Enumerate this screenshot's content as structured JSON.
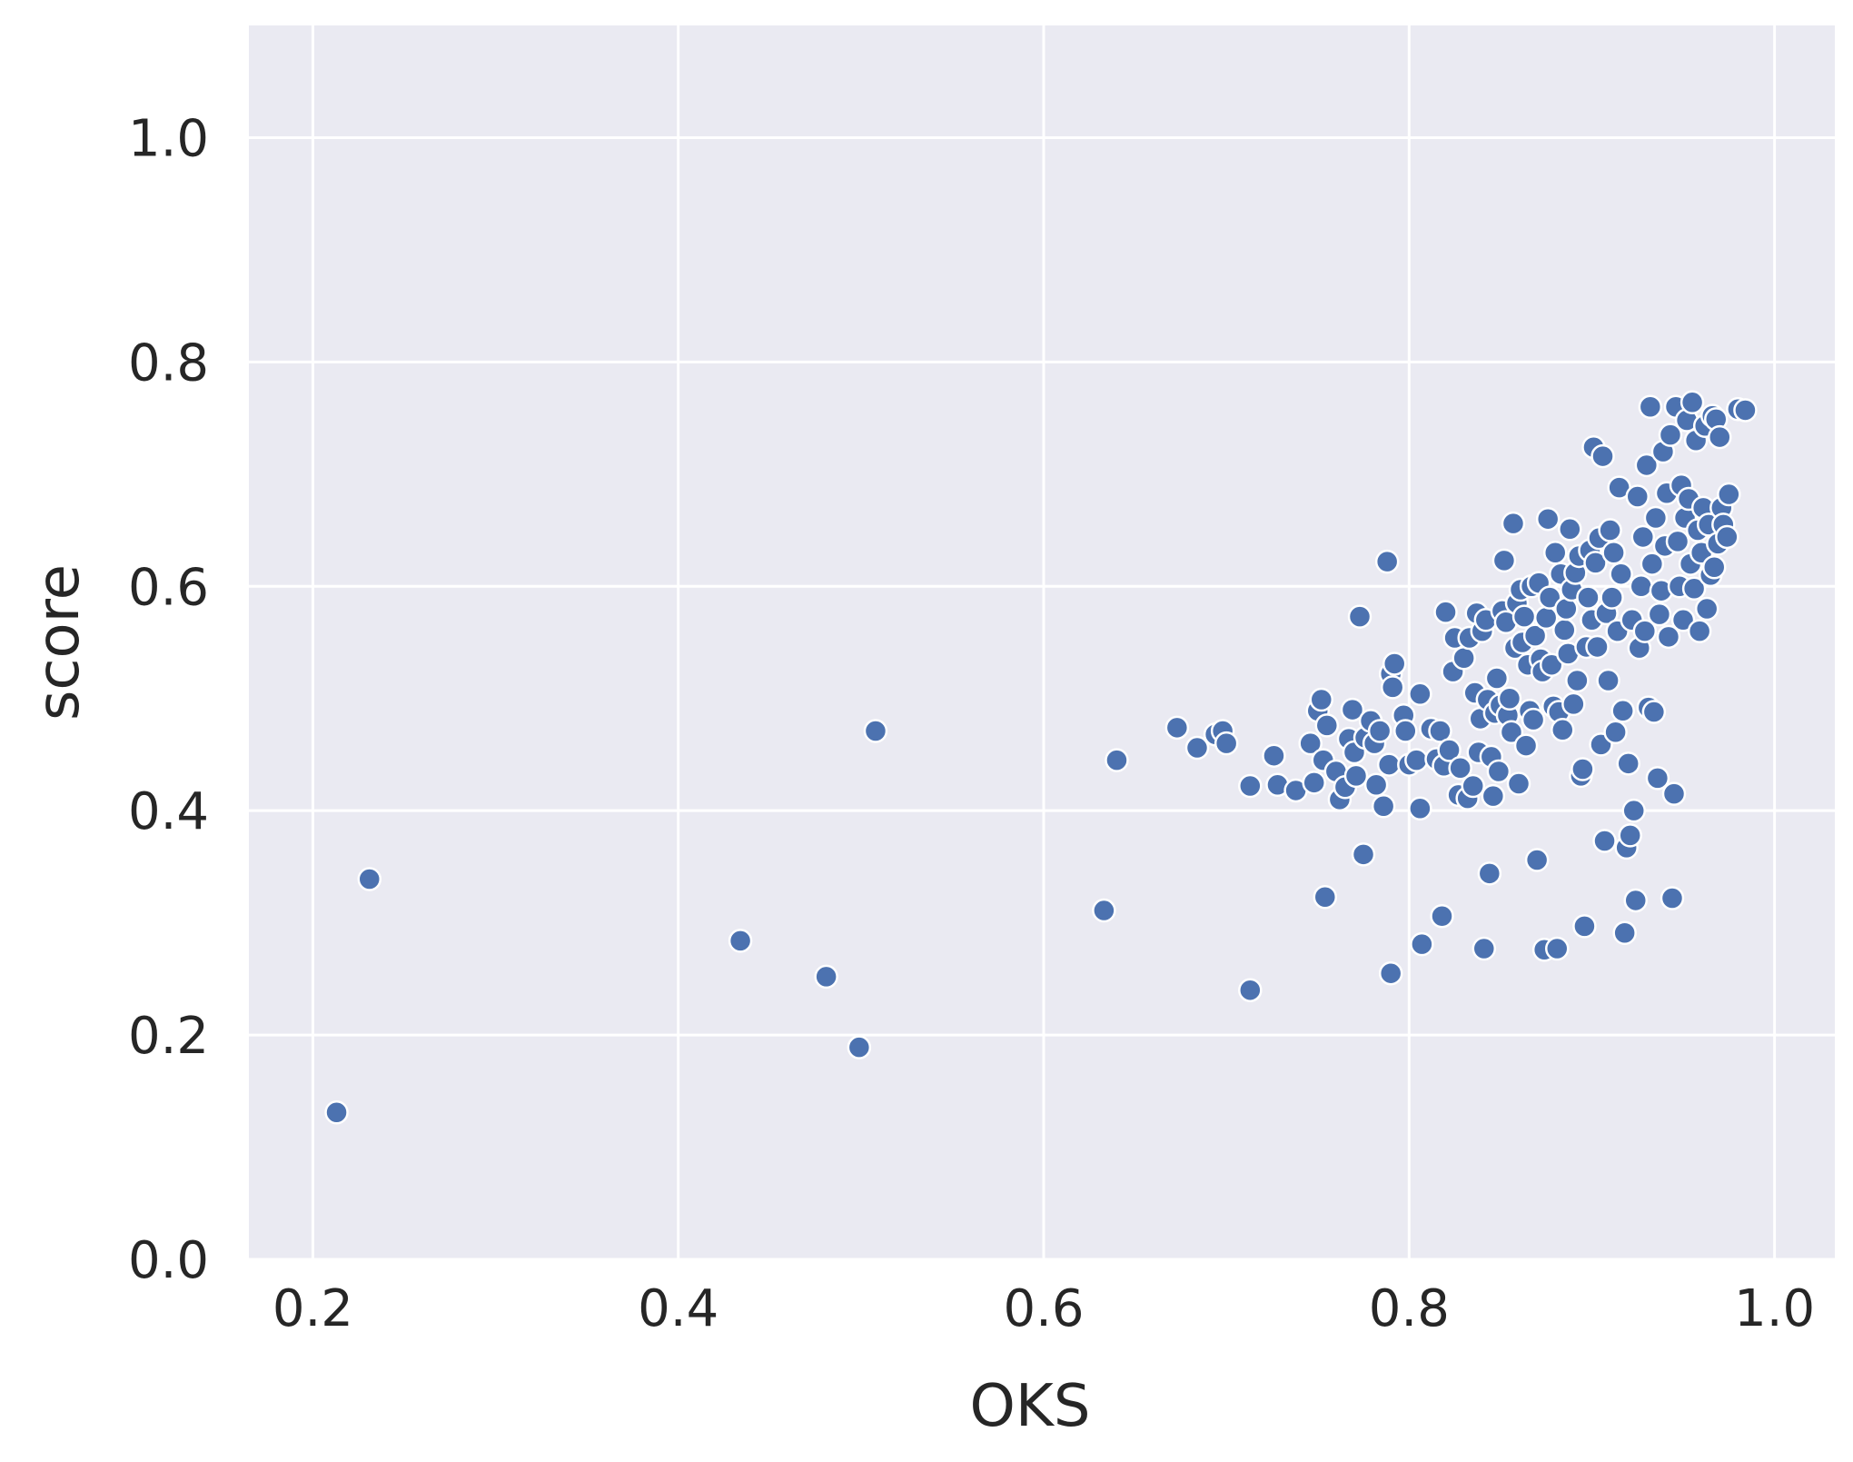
{
  "chart_data": {
    "type": "scatter",
    "title": "",
    "xlabel": "OKS",
    "ylabel": "score",
    "xlim": [
      0.165,
      1.033
    ],
    "ylim": [
      0.0,
      1.1
    ],
    "xticks": [
      0.2,
      0.4,
      0.6,
      0.8,
      1.0
    ],
    "yticks": [
      0.0,
      0.2,
      0.4,
      0.6,
      0.8,
      1.0
    ],
    "xtick_labels": [
      "0.2",
      "0.4",
      "0.6",
      "0.8",
      "1.0"
    ],
    "ytick_labels": [
      "0.0",
      "0.2",
      "0.4",
      "0.6",
      "0.8",
      "1.0"
    ],
    "grid": true,
    "background": "#eaeaf2",
    "marker_color": "#4c72b0",
    "points": [
      [
        0.213,
        0.131
      ],
      [
        0.231,
        0.339
      ],
      [
        0.434,
        0.284
      ],
      [
        0.481,
        0.252
      ],
      [
        0.499,
        0.189
      ],
      [
        0.508,
        0.471
      ],
      [
        0.633,
        0.311
      ],
      [
        0.64,
        0.445
      ],
      [
        0.673,
        0.474
      ],
      [
        0.684,
        0.456
      ],
      [
        0.694,
        0.468
      ],
      [
        0.698,
        0.471
      ],
      [
        0.7,
        0.46
      ],
      [
        0.713,
        0.422
      ],
      [
        0.713,
        0.24
      ],
      [
        0.726,
        0.449
      ],
      [
        0.728,
        0.423
      ],
      [
        0.738,
        0.418
      ],
      [
        0.746,
        0.46
      ],
      [
        0.748,
        0.425
      ],
      [
        0.75,
        0.489
      ],
      [
        0.752,
        0.499
      ],
      [
        0.753,
        0.445
      ],
      [
        0.754,
        0.323
      ],
      [
        0.755,
        0.476
      ],
      [
        0.76,
        0.435
      ],
      [
        0.762,
        0.41
      ],
      [
        0.765,
        0.421
      ],
      [
        0.767,
        0.464
      ],
      [
        0.769,
        0.49
      ],
      [
        0.77,
        0.452
      ],
      [
        0.771,
        0.431
      ],
      [
        0.773,
        0.573
      ],
      [
        0.775,
        0.361
      ],
      [
        0.776,
        0.465
      ],
      [
        0.779,
        0.48
      ],
      [
        0.781,
        0.46
      ],
      [
        0.782,
        0.423
      ],
      [
        0.784,
        0.471
      ],
      [
        0.786,
        0.404
      ],
      [
        0.788,
        0.622
      ],
      [
        0.789,
        0.441
      ],
      [
        0.79,
        0.255
      ],
      [
        0.79,
        0.522
      ],
      [
        0.791,
        0.51
      ],
      [
        0.792,
        0.531
      ],
      [
        0.797,
        0.485
      ],
      [
        0.798,
        0.471
      ],
      [
        0.8,
        0.441
      ],
      [
        0.804,
        0.445
      ],
      [
        0.806,
        0.402
      ],
      [
        0.806,
        0.504
      ],
      [
        0.807,
        0.281
      ],
      [
        0.812,
        0.473
      ],
      [
        0.815,
        0.446
      ],
      [
        0.817,
        0.471
      ],
      [
        0.818,
        0.306
      ],
      [
        0.819,
        0.44
      ],
      [
        0.82,
        0.577
      ],
      [
        0.822,
        0.454
      ],
      [
        0.824,
        0.524
      ],
      [
        0.825,
        0.554
      ],
      [
        0.827,
        0.414
      ],
      [
        0.828,
        0.438
      ],
      [
        0.83,
        0.536
      ],
      [
        0.832,
        0.411
      ],
      [
        0.833,
        0.554
      ],
      [
        0.835,
        0.422
      ],
      [
        0.836,
        0.505
      ],
      [
        0.837,
        0.576
      ],
      [
        0.838,
        0.452
      ],
      [
        0.839,
        0.482
      ],
      [
        0.84,
        0.56
      ],
      [
        0.841,
        0.277
      ],
      [
        0.842,
        0.57
      ],
      [
        0.843,
        0.499
      ],
      [
        0.844,
        0.344
      ],
      [
        0.845,
        0.448
      ],
      [
        0.846,
        0.413
      ],
      [
        0.847,
        0.487
      ],
      [
        0.848,
        0.518
      ],
      [
        0.849,
        0.435
      ],
      [
        0.85,
        0.494
      ],
      [
        0.851,
        0.578
      ],
      [
        0.852,
        0.623
      ],
      [
        0.853,
        0.568
      ],
      [
        0.854,
        0.485
      ],
      [
        0.855,
        0.5
      ],
      [
        0.856,
        0.47
      ],
      [
        0.857,
        0.656
      ],
      [
        0.858,
        0.545
      ],
      [
        0.859,
        0.585
      ],
      [
        0.86,
        0.424
      ],
      [
        0.861,
        0.597
      ],
      [
        0.862,
        0.55
      ],
      [
        0.863,
        0.573
      ],
      [
        0.864,
        0.458
      ],
      [
        0.865,
        0.53
      ],
      [
        0.866,
        0.489
      ],
      [
        0.867,
        0.6
      ],
      [
        0.868,
        0.481
      ],
      [
        0.869,
        0.556
      ],
      [
        0.87,
        0.356
      ],
      [
        0.871,
        0.603
      ],
      [
        0.872,
        0.535
      ],
      [
        0.873,
        0.524
      ],
      [
        0.874,
        0.276
      ],
      [
        0.875,
        0.572
      ],
      [
        0.876,
        0.66
      ],
      [
        0.877,
        0.59
      ],
      [
        0.878,
        0.53
      ],
      [
        0.879,
        0.493
      ],
      [
        0.88,
        0.63
      ],
      [
        0.881,
        0.277
      ],
      [
        0.882,
        0.488
      ],
      [
        0.883,
        0.611
      ],
      [
        0.884,
        0.472
      ],
      [
        0.885,
        0.561
      ],
      [
        0.886,
        0.58
      ],
      [
        0.887,
        0.54
      ],
      [
        0.888,
        0.651
      ],
      [
        0.889,
        0.597
      ],
      [
        0.89,
        0.495
      ],
      [
        0.891,
        0.612
      ],
      [
        0.892,
        0.516
      ],
      [
        0.893,
        0.627
      ],
      [
        0.894,
        0.431
      ],
      [
        0.895,
        0.437
      ],
      [
        0.896,
        0.297
      ],
      [
        0.897,
        0.546
      ],
      [
        0.898,
        0.59
      ],
      [
        0.899,
        0.632
      ],
      [
        0.9,
        0.57
      ],
      [
        0.901,
        0.724
      ],
      [
        0.902,
        0.621
      ],
      [
        0.903,
        0.546
      ],
      [
        0.904,
        0.643
      ],
      [
        0.905,
        0.459
      ],
      [
        0.906,
        0.716
      ],
      [
        0.907,
        0.373
      ],
      [
        0.908,
        0.576
      ],
      [
        0.909,
        0.516
      ],
      [
        0.91,
        0.65
      ],
      [
        0.911,
        0.59
      ],
      [
        0.912,
        0.63
      ],
      [
        0.913,
        0.47
      ],
      [
        0.914,
        0.56
      ],
      [
        0.915,
        0.688
      ],
      [
        0.916,
        0.611
      ],
      [
        0.917,
        0.489
      ],
      [
        0.918,
        0.291
      ],
      [
        0.919,
        0.367
      ],
      [
        0.92,
        0.442
      ],
      [
        0.921,
        0.378
      ],
      [
        0.922,
        0.57
      ],
      [
        0.923,
        0.4
      ],
      [
        0.924,
        0.32
      ],
      [
        0.925,
        0.68
      ],
      [
        0.926,
        0.545
      ],
      [
        0.927,
        0.6
      ],
      [
        0.928,
        0.644
      ],
      [
        0.929,
        0.56
      ],
      [
        0.93,
        0.708
      ],
      [
        0.931,
        0.492
      ],
      [
        0.932,
        0.76
      ],
      [
        0.933,
        0.62
      ],
      [
        0.934,
        0.488
      ],
      [
        0.935,
        0.661
      ],
      [
        0.936,
        0.429
      ],
      [
        0.937,
        0.575
      ],
      [
        0.938,
        0.596
      ],
      [
        0.939,
        0.72
      ],
      [
        0.94,
        0.636
      ],
      [
        0.941,
        0.683
      ],
      [
        0.942,
        0.555
      ],
      [
        0.943,
        0.735
      ],
      [
        0.944,
        0.322
      ],
      [
        0.945,
        0.415
      ],
      [
        0.946,
        0.76
      ],
      [
        0.947,
        0.64
      ],
      [
        0.948,
        0.6
      ],
      [
        0.949,
        0.69
      ],
      [
        0.95,
        0.57
      ],
      [
        0.951,
        0.661
      ],
      [
        0.952,
        0.748
      ],
      [
        0.953,
        0.678
      ],
      [
        0.954,
        0.62
      ],
      [
        0.955,
        0.764
      ],
      [
        0.956,
        0.598
      ],
      [
        0.957,
        0.73
      ],
      [
        0.958,
        0.65
      ],
      [
        0.959,
        0.56
      ],
      [
        0.96,
        0.63
      ],
      [
        0.961,
        0.67
      ],
      [
        0.962,
        0.743
      ],
      [
        0.963,
        0.58
      ],
      [
        0.964,
        0.655
      ],
      [
        0.965,
        0.61
      ],
      [
        0.966,
        0.752
      ],
      [
        0.967,
        0.617
      ],
      [
        0.968,
        0.749
      ],
      [
        0.969,
        0.638
      ],
      [
        0.97,
        0.733
      ],
      [
        0.971,
        0.67
      ],
      [
        0.972,
        0.655
      ],
      [
        0.974,
        0.644
      ],
      [
        0.975,
        0.682
      ],
      [
        0.98,
        0.758
      ],
      [
        0.984,
        0.757
      ]
    ]
  }
}
